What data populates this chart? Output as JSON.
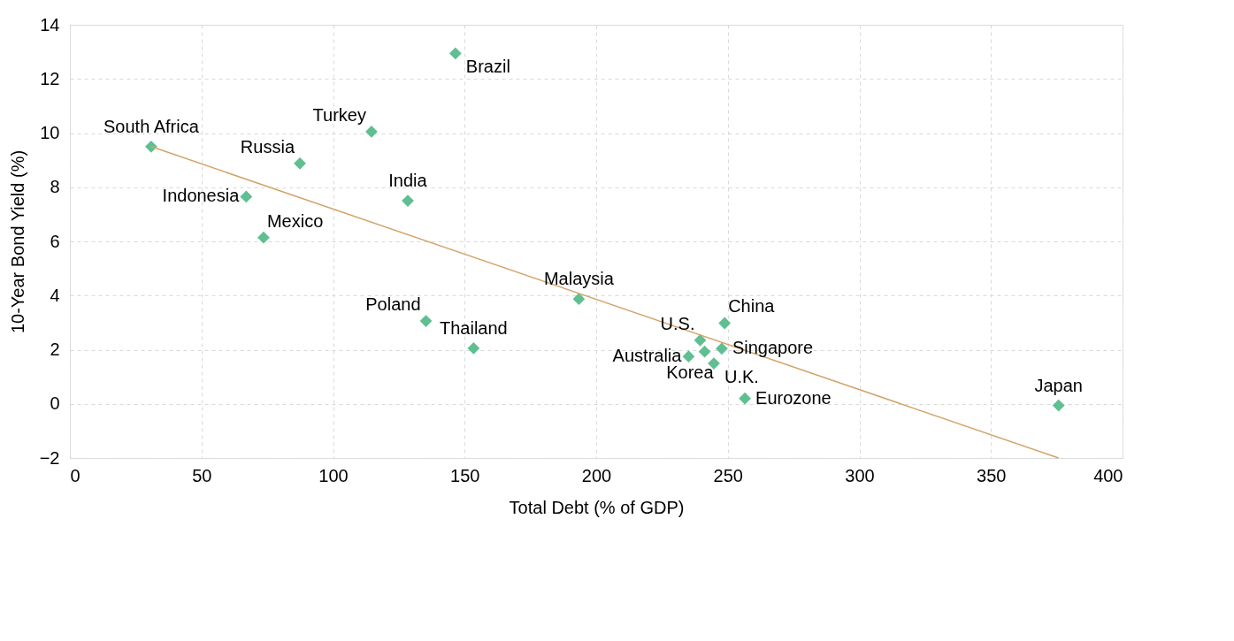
{
  "chart_data": {
    "type": "scatter",
    "xlabel": "Total Debt (% of GDP)",
    "ylabel": "10-Year Bond Yield (%)",
    "xlim": [
      0,
      400
    ],
    "xticks": [
      0,
      50,
      100,
      150,
      200,
      250,
      300,
      350,
      400
    ],
    "ylim": [
      -2,
      14
    ],
    "yticks": [
      -2,
      0,
      2,
      4,
      6,
      8,
      10,
      12,
      14
    ],
    "grid": true,
    "series": [
      {
        "marker": "diamond",
        "color": "#5fbf91",
        "x": [
          30.9,
          67,
          73.6,
          87.4,
          114.6,
          128.4,
          146.5,
          135.3,
          153.4,
          193.4,
          239.5,
          248.8,
          235.1,
          241.2,
          247.7,
          244.7,
          256.5,
          375.7
        ],
        "values": [
          9.5,
          7.65,
          6.14,
          8.88,
          10.05,
          7.5,
          12.94,
          3.06,
          2.05,
          3.87,
          2.35,
          2.98,
          1.75,
          1.93,
          2.04,
          1.49,
          0.2,
          -0.06
        ]
      },
      {
        "type": "line",
        "color": "#d4a36a",
        "x": [
          30.9,
          375.7
        ],
        "values": [
          9.5,
          -2.0
        ]
      }
    ],
    "annotations": [
      {
        "text": "South Africa",
        "x": 30.9,
        "y": 9.5
      },
      {
        "text": "Indonesia",
        "x": 67,
        "y": 7.65
      },
      {
        "text": "Mexico",
        "x": 73.6,
        "y": 6.14
      },
      {
        "text": "Russia",
        "x": 87.4,
        "y": 8.88
      },
      {
        "text": "Turkey",
        "x": 114.6,
        "y": 10.05
      },
      {
        "text": "India",
        "x": 128.4,
        "y": 7.5
      },
      {
        "text": "Brazil",
        "x": 146.5,
        "y": 12.94
      },
      {
        "text": "Poland",
        "x": 135.3,
        "y": 3.06
      },
      {
        "text": "Thailand",
        "x": 153.4,
        "y": 2.05
      },
      {
        "text": "Malaysia",
        "x": 193.4,
        "y": 3.87
      },
      {
        "text": "U.S.",
        "x": 239.5,
        "y": 2.35
      },
      {
        "text": "China",
        "x": 248.8,
        "y": 2.98
      },
      {
        "text": "Australia",
        "x": 235.1,
        "y": 1.75
      },
      {
        "text": "Korea",
        "x": 241.2,
        "y": 1.93
      },
      {
        "text": "Singapore",
        "x": 247.7,
        "y": 2.04
      },
      {
        "text": "U.K.",
        "x": 244.7,
        "y": 1.49
      },
      {
        "text": "Eurozone",
        "x": 256.5,
        "y": 0.2
      },
      {
        "text": "Japan",
        "x": 375.7,
        "y": -0.06
      }
    ]
  }
}
